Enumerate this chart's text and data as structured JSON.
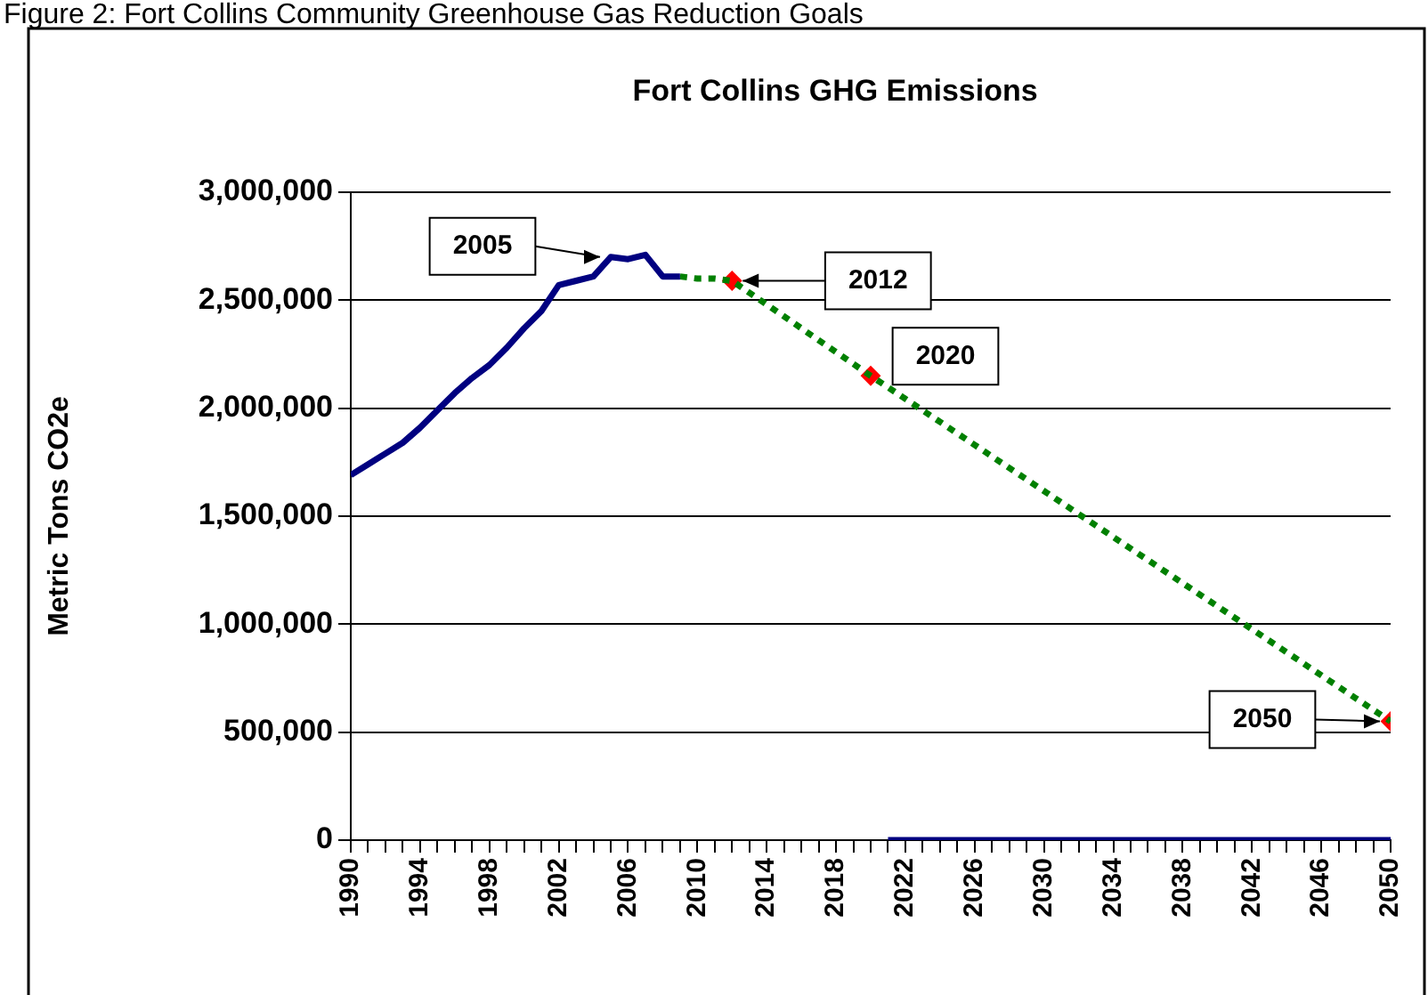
{
  "chart_data": {
    "type": "line",
    "title": "Fort Collins GHG Emissions",
    "ylabel": "Metric Tons CO2e",
    "annotations": [
      "Figure 2: Fort Collins Community Greenhouse Gas Reduction Goals",
      {
        "text": "2005",
        "x": 2005,
        "y": 2700000
      },
      {
        "text": "2012",
        "x": 2012,
        "y": 2590000
      },
      {
        "text": "2020",
        "x": 2020,
        "y": 2150000
      },
      {
        "text": "2050",
        "x": 2050,
        "y": 550000
      }
    ],
    "series": [
      {
        "type": "line",
        "color": "#000080",
        "x": [
          1990,
          1991,
          1992,
          1993,
          1994,
          1995,
          1996,
          1997,
          1998,
          1999,
          2000,
          2001,
          2002,
          2003,
          2004,
          2005,
          2006,
          2007,
          2008,
          2009,
          2010,
          2021,
          2022,
          2023,
          2024,
          2025,
          2026,
          2027,
          2028,
          2029,
          2030,
          2031,
          2032,
          2033,
          2034,
          2035,
          2036,
          2037,
          2038,
          2039,
          2040,
          2041,
          2042,
          2043,
          2044,
          2045,
          2046,
          2047,
          2048,
          2049,
          2050
        ],
        "values": [
          1690000,
          1740000,
          1790000,
          1840000,
          1910000,
          1990000,
          2070000,
          2140000,
          2200000,
          2280000,
          2370000,
          2450000,
          2570000,
          2590000,
          2610000,
          2700000,
          2690000,
          2710000,
          2610000,
          2610000,
          null,
          0,
          0,
          0,
          0,
          0,
          0,
          0,
          0,
          0,
          0,
          0,
          0,
          0,
          0,
          0,
          0,
          0,
          0,
          0,
          0,
          0,
          0,
          0,
          0,
          0,
          0,
          0,
          0,
          0,
          0
        ]
      },
      {
        "type": "line",
        "color": "#008000",
        "line_style": "dotted",
        "x": [
          2009,
          2010,
          2011,
          2012,
          2020,
          2050
        ],
        "values": [
          2610000,
          2600000,
          2600000,
          2590000,
          2150000,
          550000
        ]
      },
      {
        "type": "scatter",
        "color": "#ff0000",
        "marker": "diamond",
        "x": [
          2012,
          2020,
          2050
        ],
        "values": [
          2590000,
          2150000,
          550000
        ]
      }
    ],
    "xlim": [
      1990,
      2050
    ],
    "xticks": [
      1990,
      {
        "value": 1991,
        "label": null
      },
      {
        "value": 1992,
        "label": null
      },
      {
        "value": 1993,
        "label": null
      },
      1994,
      {
        "value": 1995,
        "label": null
      },
      {
        "value": 1996,
        "label": null
      },
      {
        "value": 1997,
        "label": null
      },
      1998,
      {
        "value": 1999,
        "label": null
      },
      {
        "value": 2000,
        "label": null
      },
      {
        "value": 2001,
        "label": null
      },
      2002,
      {
        "value": 2003,
        "label": null
      },
      {
        "value": 2004,
        "label": null
      },
      {
        "value": 2005,
        "label": null
      },
      2006,
      {
        "value": 2007,
        "label": null
      },
      {
        "value": 2008,
        "label": null
      },
      {
        "value": 2009,
        "label": null
      },
      2010,
      {
        "value": 2011,
        "label": null
      },
      {
        "value": 2012,
        "label": null
      },
      {
        "value": 2013,
        "label": null
      },
      2014,
      {
        "value": 2015,
        "label": null
      },
      {
        "value": 2016,
        "label": null
      },
      {
        "value": 2017,
        "label": null
      },
      2018,
      {
        "value": 2019,
        "label": null
      },
      {
        "value": 2020,
        "label": null
      },
      {
        "value": 2021,
        "label": null
      },
      2022,
      {
        "value": 2023,
        "label": null
      },
      {
        "value": 2024,
        "label": null
      },
      {
        "value": 2025,
        "label": null
      },
      2026,
      {
        "value": 2027,
        "label": null
      },
      {
        "value": 2028,
        "label": null
      },
      {
        "value": 2029,
        "label": null
      },
      2030,
      {
        "value": 2031,
        "label": null
      },
      {
        "value": 2032,
        "label": null
      },
      {
        "value": 2033,
        "label": null
      },
      2034,
      {
        "value": 2035,
        "label": null
      },
      {
        "value": 2036,
        "label": null
      },
      {
        "value": 2037,
        "label": null
      },
      2038,
      {
        "value": 2039,
        "label": null
      },
      {
        "value": 2040,
        "label": null
      },
      {
        "value": 2041,
        "label": null
      },
      2042,
      {
        "value": 2043,
        "label": null
      },
      {
        "value": 2044,
        "label": null
      },
      {
        "value": 2045,
        "label": null
      },
      2046,
      {
        "value": 2047,
        "label": null
      },
      {
        "value": 2048,
        "label": null
      },
      {
        "value": 2049,
        "label": null
      },
      2050
    ],
    "ylim": [
      0,
      3000000
    ],
    "yticks": [
      {
        "value": 0,
        "label": "0"
      },
      {
        "value": 500000,
        "label": "500,000"
      },
      {
        "value": 1000000,
        "label": "1,000,000"
      },
      {
        "value": 1500000,
        "label": "1,500,000"
      },
      {
        "value": 2000000,
        "label": "2,000,000"
      },
      {
        "value": 2500000,
        "label": "2,500,000"
      },
      {
        "value": 3000000,
        "label": "3,000,000"
      }
    ],
    "grid": "y",
    "legend": false
  }
}
